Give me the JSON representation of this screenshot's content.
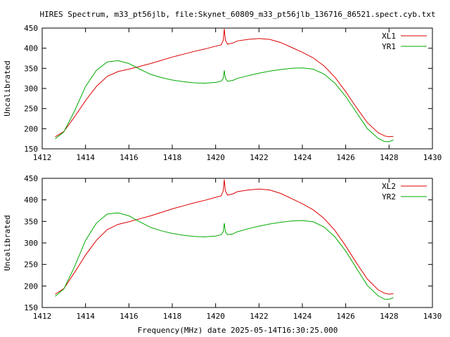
{
  "title": "HIRES Spectrum, m33_pt56jlb, file:Skynet_60809_m33_pt56jlb_136716_86521.spect.cyb.txt",
  "xlabel": "Frequency(MHz) date 2025-05-14T16:30:25.000",
  "chart_data": [
    {
      "type": "line",
      "ylabel": "Uncalibrated",
      "xlim": [
        1412,
        1430
      ],
      "ylim": [
        150,
        450
      ],
      "xticks": [
        1412,
        1414,
        1416,
        1418,
        1420,
        1422,
        1424,
        1426,
        1428,
        1430
      ],
      "yticks": [
        150,
        200,
        250,
        300,
        350,
        400,
        450
      ],
      "legend_position": "top-right",
      "series": [
        {
          "name": "XL1",
          "color": "#dd0000",
          "x": [
            1412.6,
            1413.0,
            1413.5,
            1414.0,
            1414.5,
            1415.0,
            1415.5,
            1416.0,
            1416.5,
            1417.0,
            1417.5,
            1418.0,
            1418.5,
            1419.0,
            1419.5,
            1420.0,
            1420.25,
            1420.35,
            1420.4,
            1420.45,
            1420.55,
            1420.8,
            1421.0,
            1421.5,
            1422.0,
            1422.5,
            1423.0,
            1423.5,
            1424.0,
            1424.5,
            1425.0,
            1425.5,
            1426.0,
            1426.5,
            1427.0,
            1427.5,
            1427.8,
            1428.0,
            1428.2
          ],
          "y": [
            180,
            193,
            230,
            270,
            305,
            330,
            342,
            348,
            355,
            362,
            370,
            378,
            385,
            392,
            398,
            405,
            408,
            420,
            448,
            420,
            410,
            413,
            418,
            422,
            424,
            422,
            414,
            402,
            390,
            376,
            356,
            328,
            292,
            252,
            215,
            190,
            182,
            180,
            181
          ]
        },
        {
          "name": "YR1",
          "color": "#00aa00",
          "x": [
            1412.6,
            1413.0,
            1413.5,
            1414.0,
            1414.5,
            1415.0,
            1415.5,
            1416.0,
            1416.5,
            1417.0,
            1417.5,
            1418.0,
            1418.5,
            1419.0,
            1419.5,
            1420.0,
            1420.25,
            1420.35,
            1420.4,
            1420.45,
            1420.55,
            1420.8,
            1421.0,
            1421.5,
            1422.0,
            1422.5,
            1423.0,
            1423.5,
            1424.0,
            1424.5,
            1425.0,
            1425.5,
            1426.0,
            1426.5,
            1427.0,
            1427.5,
            1427.8,
            1428.0,
            1428.2
          ],
          "y": [
            175,
            192,
            245,
            305,
            345,
            366,
            369,
            362,
            348,
            335,
            327,
            321,
            317,
            314,
            313,
            315,
            318,
            325,
            345,
            325,
            318,
            320,
            325,
            332,
            338,
            343,
            347,
            350,
            351,
            348,
            336,
            313,
            280,
            240,
            200,
            176,
            168,
            168,
            172
          ]
        }
      ]
    },
    {
      "type": "line",
      "ylabel": "Uncalibrated",
      "xlim": [
        1412,
        1430
      ],
      "ylim": [
        150,
        450
      ],
      "xticks": [
        1412,
        1414,
        1416,
        1418,
        1420,
        1422,
        1424,
        1426,
        1428,
        1430
      ],
      "yticks": [
        150,
        200,
        250,
        300,
        350,
        400,
        450
      ],
      "legend_position": "top-right",
      "series": [
        {
          "name": "XL2",
          "color": "#dd0000",
          "x": [
            1412.6,
            1413.0,
            1413.5,
            1414.0,
            1414.5,
            1415.0,
            1415.5,
            1416.0,
            1416.5,
            1417.0,
            1417.5,
            1418.0,
            1418.5,
            1419.0,
            1419.5,
            1420.0,
            1420.25,
            1420.35,
            1420.4,
            1420.45,
            1420.55,
            1420.8,
            1421.0,
            1421.5,
            1422.0,
            1422.5,
            1423.0,
            1423.5,
            1424.0,
            1424.5,
            1425.0,
            1425.5,
            1426.0,
            1426.5,
            1427.0,
            1427.5,
            1427.8,
            1428.0,
            1428.2
          ],
          "y": [
            181,
            194,
            232,
            272,
            306,
            331,
            343,
            349,
            356,
            363,
            371,
            379,
            386,
            393,
            399,
            406,
            409,
            421,
            447,
            421,
            411,
            414,
            419,
            423,
            425,
            423,
            415,
            403,
            391,
            377,
            357,
            329,
            293,
            253,
            216,
            191,
            183,
            181,
            182
          ]
        },
        {
          "name": "YR2",
          "color": "#00aa00",
          "x": [
            1412.6,
            1413.0,
            1413.5,
            1414.0,
            1414.5,
            1415.0,
            1415.5,
            1416.0,
            1416.5,
            1417.0,
            1417.5,
            1418.0,
            1418.5,
            1419.0,
            1419.5,
            1420.0,
            1420.25,
            1420.35,
            1420.4,
            1420.45,
            1420.55,
            1420.8,
            1421.0,
            1421.5,
            1422.0,
            1422.5,
            1423.0,
            1423.5,
            1424.0,
            1424.5,
            1425.0,
            1425.5,
            1426.0,
            1426.5,
            1427.0,
            1427.5,
            1427.8,
            1428.0,
            1428.2
          ],
          "y": [
            176,
            193,
            246,
            306,
            346,
            367,
            370,
            363,
            349,
            336,
            328,
            322,
            318,
            315,
            314,
            316,
            319,
            326,
            346,
            326,
            319,
            321,
            326,
            333,
            339,
            344,
            348,
            351,
            352,
            349,
            337,
            314,
            281,
            241,
            201,
            177,
            169,
            169,
            173
          ]
        }
      ]
    }
  ]
}
